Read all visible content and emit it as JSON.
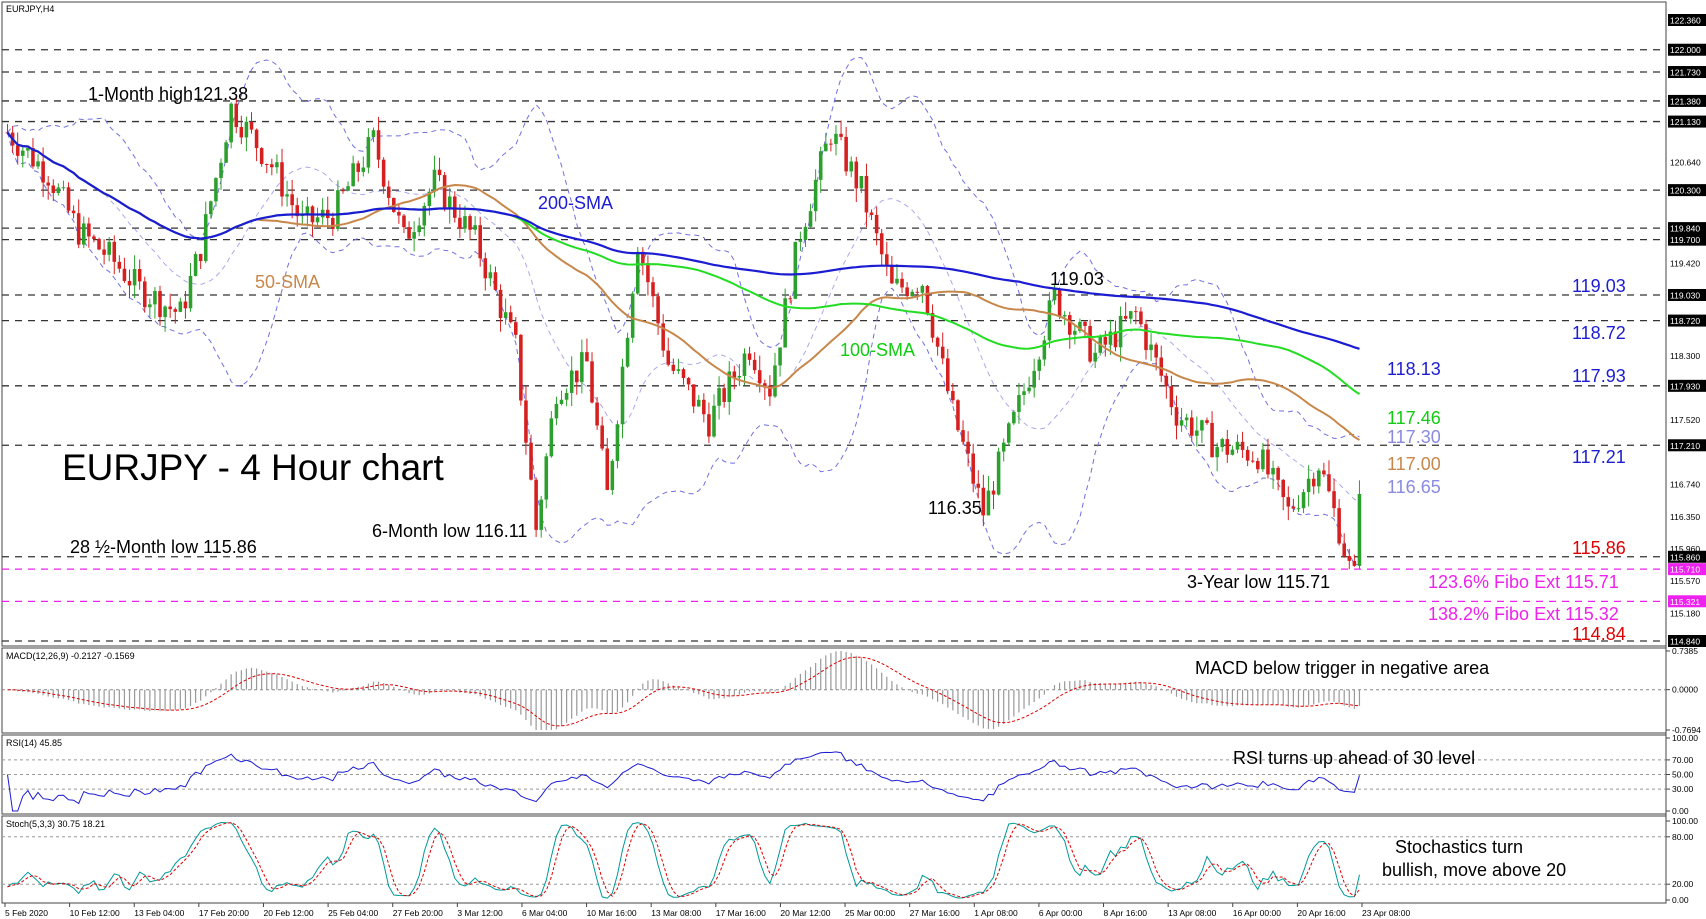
{
  "chart_data": {
    "type": "candlestick",
    "symbol_label": "EURJPY,H4",
    "title": "EURJPY - 4 Hour chart",
    "ylim": [
      114.84,
      122.36
    ],
    "y_ticks": [
      "122.360",
      "122.000",
      "121.730",
      "121.380",
      "121.130",
      "120.640",
      "120.300",
      "119.840",
      "119.700",
      "119.420",
      "119.030",
      "118.720",
      "118.300",
      "117.930",
      "117.520",
      "117.210",
      "116.740",
      "116.350",
      "115.960",
      "115.860",
      "115.710",
      "115.570",
      "115.321",
      "115.180",
      "114.840"
    ],
    "highlight_ticks": [
      "122.360",
      "122.000",
      "121.730",
      "121.380",
      "121.130",
      "120.300",
      "119.840",
      "119.700",
      "119.030",
      "118.720",
      "117.930",
      "117.210",
      "115.860",
      "114.840"
    ],
    "fibo_ticks": [
      "115.710",
      "115.321"
    ],
    "x_tick_labels": [
      "5 Feb 2020",
      "10 Feb 12:00",
      "13 Feb 04:00",
      "17 Feb 20:00",
      "20 Feb 12:00",
      "25 Feb 04:00",
      "27 Feb 20:00",
      "3 Mar 12:00",
      "6 Mar 04:00",
      "10 Mar 16:00",
      "13 Mar 08:00",
      "17 Mar 16:00",
      "20 Mar 12:00",
      "25 Mar 00:00",
      "27 Mar 16:00",
      "1 Apr 08:00",
      "6 Apr 00:00",
      "8 Apr 16:00",
      "13 Apr 08:00",
      "16 Apr 00:00",
      "20 Apr 16:00",
      "23 Apr 08:00"
    ],
    "horizontal_levels": [
      122.0,
      121.73,
      121.38,
      121.13,
      120.3,
      119.84,
      119.7,
      119.03,
      118.72,
      117.93,
      117.21,
      115.86,
      114.84
    ],
    "fibo_levels": [
      115.71,
      115.32
    ],
    "path_anchors": [
      [
        0,
        121.0
      ],
      [
        8,
        120.5
      ],
      [
        14,
        119.8
      ],
      [
        20,
        119.5
      ],
      [
        26,
        119.1
      ],
      [
        34,
        118.8
      ],
      [
        38,
        119.6
      ],
      [
        44,
        121.3
      ],
      [
        52,
        120.6
      ],
      [
        58,
        119.9
      ],
      [
        64,
        120.0
      ],
      [
        72,
        120.9
      ],
      [
        78,
        119.7
      ],
      [
        84,
        120.4
      ],
      [
        92,
        119.7
      ],
      [
        100,
        118.4
      ],
      [
        104,
        116.2
      ],
      [
        108,
        117.9
      ],
      [
        114,
        118.2
      ],
      [
        118,
        116.6
      ],
      [
        124,
        119.7
      ],
      [
        130,
        118.2
      ],
      [
        138,
        117.5
      ],
      [
        146,
        118.4
      ],
      [
        150,
        117.9
      ],
      [
        156,
        119.8
      ],
      [
        162,
        121.0
      ],
      [
        168,
        120.3
      ],
      [
        174,
        119.1
      ],
      [
        180,
        119.2
      ],
      [
        186,
        117.6
      ],
      [
        192,
        116.4
      ],
      [
        198,
        117.5
      ],
      [
        206,
        119.0
      ],
      [
        214,
        118.3
      ],
      [
        222,
        118.8
      ],
      [
        230,
        117.6
      ],
      [
        238,
        117.2
      ],
      [
        246,
        117.1
      ],
      [
        252,
        116.4
      ],
      [
        258,
        117.0
      ],
      [
        262,
        116.2
      ],
      [
        264,
        115.72
      ],
      [
        266,
        116.6
      ]
    ],
    "annotations": {
      "month_high": "1-Month high121.38",
      "low_28": "28 ½-Month low 115.86",
      "low_6m": "6-Month low 116.11",
      "low_11635": "116.35",
      "high_11903": "119.03",
      "low_3y": "3-Year low 115.71",
      "sma200": "200-SMA",
      "sma50": "50-SMA",
      "sma100": "100-SMA"
    },
    "right_levels": {
      "r1": "119.03",
      "r2": "118.72",
      "r3": "117.93",
      "r4": "117.21",
      "s1": "115.86",
      "s2": "114.84",
      "fibo1": "123.6% Fibo Ext 115.71",
      "fibo2": "138.2% Fibo Ext 115.32",
      "ma200": "118.13",
      "ma100": "117.46",
      "bb_upper": "117.30",
      "ma50": "117.00",
      "bb_lower": "116.65"
    },
    "colors": {
      "bull": "#2ca02c",
      "bear": "#d62020",
      "sma200": "#1c1cd2",
      "sma100": "#22dd22",
      "sma50": "#c8874a",
      "bollinger": "#7070e0",
      "fibo": "#ee22ee",
      "level": "#333333",
      "blue_text": "#1c1cd2",
      "red_text": "#e00000",
      "green_text": "#11cc11",
      "orange_text": "#c8874a",
      "lilac_text": "#8a8ae0"
    },
    "macd": {
      "label": "MACD(12,26,9) -0.2127 -0.1569",
      "note": "MACD below trigger in negative area",
      "ticks": [
        "0.7385",
        "0.0000",
        "-0.7694"
      ],
      "range": [
        -0.7694,
        0.7385
      ]
    },
    "rsi": {
      "label": "RSI(14) 45.85",
      "note": "RSI turns up ahead of 30 level",
      "ticks": [
        "100.00",
        "70.00",
        "50.00",
        "30.00",
        "0.00"
      ]
    },
    "stoch": {
      "label": "Stoch(5,3,3) 30.75 18.21",
      "note_line1": "Stochastics turn",
      "note_line2": "bullish, move above 20",
      "ticks": [
        "100.00",
        "80.00",
        "20.00",
        "0.00"
      ]
    }
  }
}
